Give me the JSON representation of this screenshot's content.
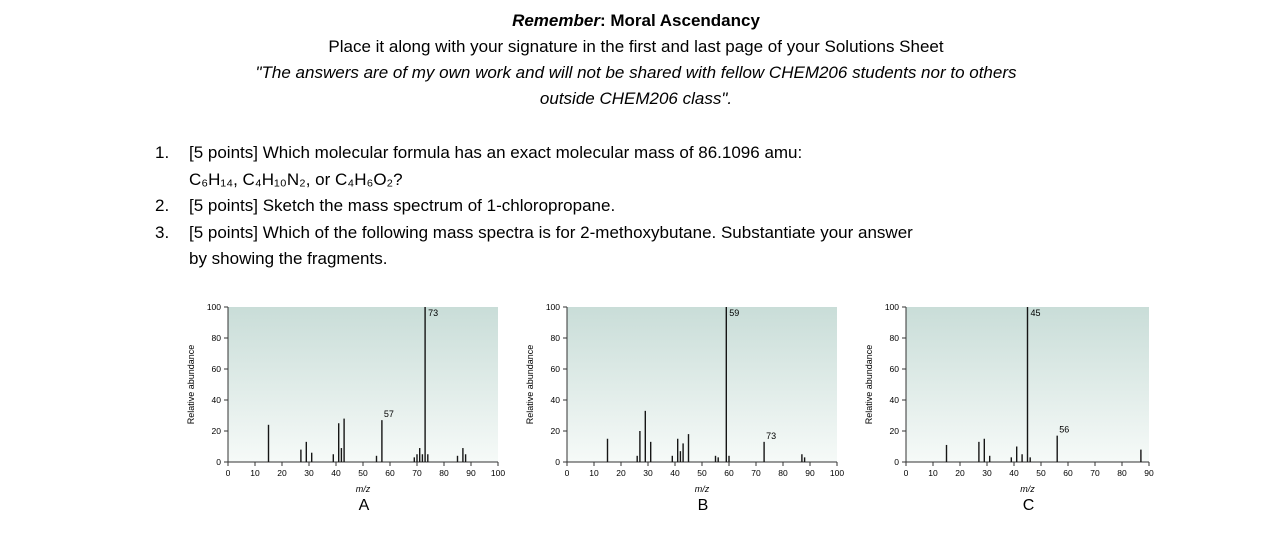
{
  "header": {
    "remember": "Remember",
    "line1_rest": ": Moral Ascendancy",
    "line2": "Place it along with your signature in the first and last page of your Solutions Sheet",
    "quote_line1": "\"The answers are of my own work and will not be shared with fellow CHEM206 students nor to others",
    "quote_line2": "outside CHEM206 class\"."
  },
  "questions": [
    {
      "number": "1.",
      "text": "[5 points] Which molecular formula has an exact molecular mass of 86.1096 amu:",
      "text2": "C₆H₁₄, C₄H₁₀N₂, or C₄H₆O₂?"
    },
    {
      "number": "2.",
      "text": "[5 points] Sketch the mass spectrum of 1-chloropropane."
    },
    {
      "number": "3.",
      "text": "[5 points] Which of the following mass spectra is for 2-methoxybutane. Substantiate your answer",
      "text2": "by showing the fragments."
    }
  ],
  "colors": {
    "plot_top": "#c9ddd8",
    "plot_bottom": "#f6faf8",
    "bar": "#151515",
    "axis": "#333333"
  },
  "chart_data": [
    {
      "type": "bar",
      "label": "A",
      "xlabel": "m/z",
      "ylabel": "Relative abundance",
      "xlim": [
        0,
        100
      ],
      "ylim": [
        0,
        100
      ],
      "xticks": [
        0,
        10,
        20,
        30,
        40,
        50,
        60,
        70,
        80,
        90,
        100
      ],
      "yticks": [
        0,
        20,
        40,
        60,
        80,
        100
      ],
      "peaks": [
        {
          "mz": 15,
          "ab": 24
        },
        {
          "mz": 27,
          "ab": 8
        },
        {
          "mz": 29,
          "ab": 13
        },
        {
          "mz": 31,
          "ab": 6
        },
        {
          "mz": 39,
          "ab": 5
        },
        {
          "mz": 41,
          "ab": 25
        },
        {
          "mz": 42,
          "ab": 9
        },
        {
          "mz": 43,
          "ab": 28
        },
        {
          "mz": 55,
          "ab": 4
        },
        {
          "mz": 57,
          "ab": 27,
          "label": "57"
        },
        {
          "mz": 69,
          "ab": 3
        },
        {
          "mz": 70,
          "ab": 5
        },
        {
          "mz": 71,
          "ab": 9
        },
        {
          "mz": 72,
          "ab": 5
        },
        {
          "mz": 73,
          "ab": 100,
          "label": "73"
        },
        {
          "mz": 74,
          "ab": 5
        },
        {
          "mz": 85,
          "ab": 4
        },
        {
          "mz": 87,
          "ab": 9
        },
        {
          "mz": 88,
          "ab": 5
        }
      ]
    },
    {
      "type": "bar",
      "label": "B",
      "xlabel": "m/z",
      "ylabel": "Relative abundance",
      "xlim": [
        0,
        100
      ],
      "ylim": [
        0,
        100
      ],
      "xticks": [
        0,
        10,
        20,
        30,
        40,
        50,
        60,
        70,
        80,
        90,
        100
      ],
      "yticks": [
        0,
        20,
        40,
        60,
        80,
        100
      ],
      "peaks": [
        {
          "mz": 15,
          "ab": 15
        },
        {
          "mz": 26,
          "ab": 4
        },
        {
          "mz": 27,
          "ab": 20
        },
        {
          "mz": 29,
          "ab": 33
        },
        {
          "mz": 31,
          "ab": 13
        },
        {
          "mz": 39,
          "ab": 4
        },
        {
          "mz": 41,
          "ab": 15
        },
        {
          "mz": 42,
          "ab": 7
        },
        {
          "mz": 43,
          "ab": 12
        },
        {
          "mz": 45,
          "ab": 18
        },
        {
          "mz": 55,
          "ab": 4
        },
        {
          "mz": 56,
          "ab": 3
        },
        {
          "mz": 59,
          "ab": 100,
          "label": "59"
        },
        {
          "mz": 60,
          "ab": 4
        },
        {
          "mz": 73,
          "ab": 13,
          "label": "73"
        },
        {
          "mz": 87,
          "ab": 5
        },
        {
          "mz": 88,
          "ab": 3
        }
      ]
    },
    {
      "type": "bar",
      "label": "C",
      "xlabel": "m/z",
      "ylabel": "Relative abundance",
      "xlim": [
        0,
        90
      ],
      "ylim": [
        0,
        100
      ],
      "xticks": [
        0,
        10,
        20,
        30,
        40,
        50,
        60,
        70,
        80,
        90
      ],
      "yticks": [
        0,
        20,
        40,
        60,
        80,
        100
      ],
      "peaks": [
        {
          "mz": 15,
          "ab": 11
        },
        {
          "mz": 27,
          "ab": 13
        },
        {
          "mz": 29,
          "ab": 15
        },
        {
          "mz": 31,
          "ab": 4
        },
        {
          "mz": 39,
          "ab": 3
        },
        {
          "mz": 41,
          "ab": 10
        },
        {
          "mz": 43,
          "ab": 5
        },
        {
          "mz": 45,
          "ab": 100,
          "label": "45"
        },
        {
          "mz": 46,
          "ab": 3
        },
        {
          "mz": 56,
          "ab": 17,
          "label": "56"
        },
        {
          "mz": 87,
          "ab": 8
        }
      ]
    }
  ]
}
